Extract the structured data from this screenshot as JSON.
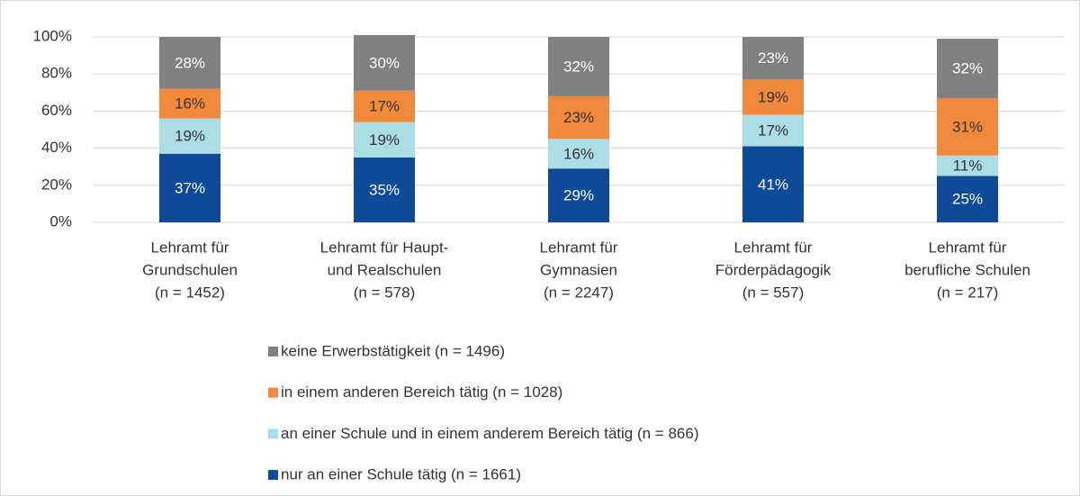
{
  "chart_data": {
    "type": "stacked_bar",
    "categories": [
      [
        "Lehramt für",
        "Grundschulen",
        "(n = 1452)"
      ],
      [
        "Lehramt für Haupt-",
        "und Realschulen",
        "(n = 578)"
      ],
      [
        "Lehramt für",
        "Gymnasien",
        "(n = 2247)"
      ],
      [
        "Lehramt für",
        "Förderpädagogik",
        "(n = 557)"
      ],
      [
        "Lehramt für",
        "berufliche Schulen",
        "(n = 217)"
      ]
    ],
    "series": [
      {
        "name": "nur an einer Schule tätig (n = 1661)",
        "color": "#0d4a97",
        "label_color": "#ffffff",
        "values": [
          37,
          35,
          29,
          41,
          25
        ],
        "value_labels": [
          "37%",
          "35%",
          "29%",
          "41%",
          "25%"
        ]
      },
      {
        "name": "an einer Schule und in einem anderem Bereich tätig (n = 866)",
        "color": "#abdde4",
        "label_color": "#333333",
        "values": [
          19,
          19,
          16,
          17,
          11
        ],
        "value_labels": [
          "19%",
          "19%",
          "16%",
          "17%",
          "11%"
        ]
      },
      {
        "name": "in einem anderen Bereich tätig (n = 1028)",
        "color": "#f0893b",
        "label_color": "#333333",
        "values": [
          16,
          17,
          23,
          19,
          31
        ],
        "value_labels": [
          "16%",
          "17%",
          "23%",
          "19%",
          "31%"
        ]
      },
      {
        "name": "keine Erwerbstätigkeit (n = 1496)",
        "color": "#808080",
        "label_color": "#ffffff",
        "values": [
          28,
          30,
          32,
          23,
          32
        ],
        "value_labels": [
          "28%",
          "30%",
          "32%",
          "23%",
          "32%"
        ]
      }
    ],
    "ylim": [
      0,
      100
    ],
    "yticks": [
      {
        "value": 0,
        "label": "0%"
      },
      {
        "value": 20,
        "label": "20%"
      },
      {
        "value": 40,
        "label": "40%"
      },
      {
        "value": 60,
        "label": "60%"
      },
      {
        "value": 80,
        "label": "80%"
      },
      {
        "value": 100,
        "label": "100%"
      }
    ],
    "grid": true
  }
}
